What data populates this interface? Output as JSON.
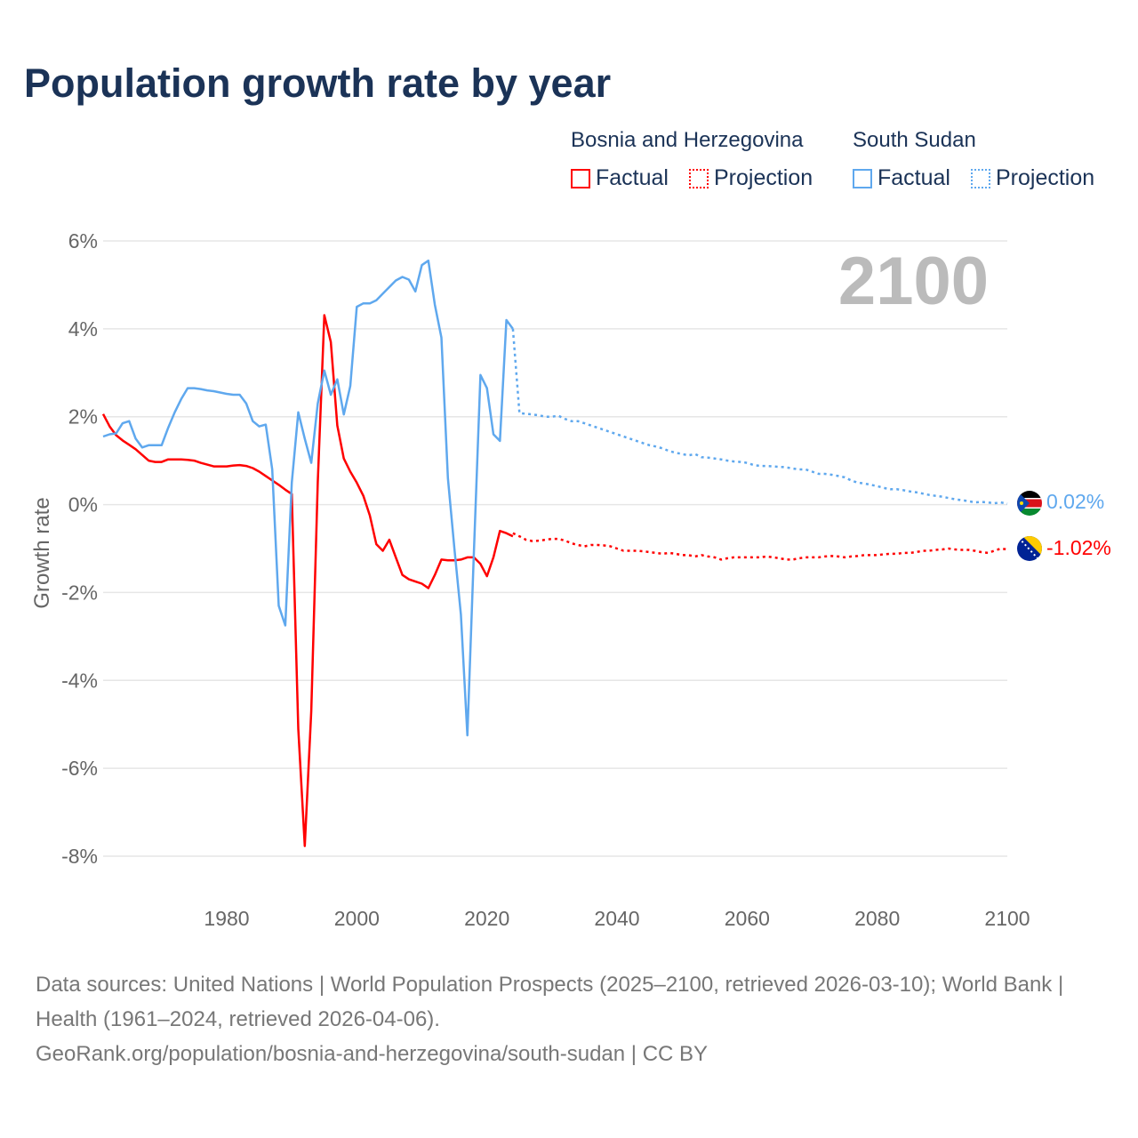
{
  "title": "Population growth rate by year",
  "legend": {
    "groups": [
      {
        "name": "Bosnia and Herzegovina",
        "factual": "Factual",
        "projection": "Projection",
        "color": "#ff0000"
      },
      {
        "name": "South Sudan",
        "factual": "Factual",
        "projection": "Projection",
        "color": "#5fa8ee"
      }
    ]
  },
  "year_label": "2100",
  "end_labels": {
    "south_sudan": "0.02%",
    "bosnia": "-1.02%"
  },
  "source": {
    "line1": "Data sources: United Nations | World Population Prospects (2025–2100, retrieved 2026-03-10); World Bank | Health (1961–2024, retrieved 2026-04-06).",
    "line2": "GeoRank.org/population/bosnia-and-herzegovina/south-sudan | CC BY"
  },
  "chart_data": {
    "type": "line",
    "title": "Population growth rate by year",
    "xlabel": "",
    "ylabel": "Growth rate",
    "xlim": [
      1961,
      2100
    ],
    "ylim": [
      -8,
      6
    ],
    "x_ticks": [
      1980,
      2000,
      2020,
      2040,
      2060,
      2080,
      2100
    ],
    "y_ticks": [
      6,
      4,
      2,
      0,
      -2,
      -4,
      -6,
      -8
    ],
    "y_tick_labels": [
      "6%",
      "4%",
      "2%",
      "0%",
      "-2%",
      "-4%",
      "-6%",
      "-8%"
    ],
    "grid": true,
    "legend_position": "top-right",
    "series": [
      {
        "name": "Bosnia and Herzegovina",
        "kind": "Factual",
        "color": "#ff0000",
        "start_year": 1961,
        "values": [
          2.06,
          1.78,
          1.58,
          1.46,
          1.36,
          1.26,
          1.13,
          1.0,
          0.97,
          0.97,
          1.03,
          1.03,
          1.03,
          1.02,
          1.0,
          0.95,
          0.91,
          0.87,
          0.87,
          0.87,
          0.89,
          0.9,
          0.88,
          0.83,
          0.75,
          0.65,
          0.55,
          0.45,
          0.34,
          0.24,
          -5.1,
          -7.77,
          -4.7,
          0.5,
          4.31,
          3.7,
          1.8,
          1.05,
          0.75,
          0.5,
          0.2,
          -0.25,
          -0.9,
          -1.05,
          -0.8,
          -1.2,
          -1.6,
          -1.7,
          -1.75,
          -1.8,
          -1.9,
          -1.6,
          -1.25,
          -1.27,
          -1.27,
          -1.25,
          -1.2,
          -1.2,
          -1.35,
          -1.63,
          -1.2,
          -0.6,
          -0.65,
          -0.72
        ]
      },
      {
        "name": "Bosnia and Herzegovina",
        "kind": "Projection",
        "color": "#ff0000",
        "start_year": 2024,
        "values": [
          -0.65,
          -0.72,
          -0.8,
          -0.83,
          -0.82,
          -0.8,
          -0.78,
          -0.78,
          -0.82,
          -0.88,
          -0.92,
          -0.95,
          -0.92,
          -0.92,
          -0.93,
          -0.95,
          -1.0,
          -1.05,
          -1.05,
          -1.05,
          -1.06,
          -1.08,
          -1.1,
          -1.12,
          -1.1,
          -1.12,
          -1.15,
          -1.15,
          -1.18,
          -1.15,
          -1.18,
          -1.2,
          -1.25,
          -1.22,
          -1.2,
          -1.2,
          -1.2,
          -1.2,
          -1.2,
          -1.18,
          -1.2,
          -1.22,
          -1.25,
          -1.25,
          -1.22,
          -1.2,
          -1.2,
          -1.2,
          -1.18,
          -1.17,
          -1.18,
          -1.2,
          -1.18,
          -1.17,
          -1.15,
          -1.15,
          -1.15,
          -1.13,
          -1.12,
          -1.12,
          -1.1,
          -1.1,
          -1.08,
          -1.05,
          -1.05,
          -1.03,
          -1.02,
          -1.0,
          -1.02,
          -1.03,
          -1.03,
          -1.05,
          -1.08,
          -1.1,
          -1.05,
          -1.0,
          -1.02
        ]
      },
      {
        "name": "South Sudan",
        "kind": "Factual",
        "color": "#5fa8ee",
        "start_year": 1961,
        "values": [
          1.55,
          1.6,
          1.62,
          1.85,
          1.9,
          1.5,
          1.3,
          1.35,
          1.35,
          1.35,
          1.75,
          2.1,
          2.4,
          2.65,
          2.65,
          2.63,
          2.6,
          2.58,
          2.55,
          2.52,
          2.5,
          2.5,
          2.3,
          1.9,
          1.78,
          1.82,
          0.8,
          -2.3,
          -2.75,
          0.5,
          2.1,
          1.5,
          0.95,
          2.3,
          3.05,
          2.5,
          2.85,
          2.05,
          2.7,
          4.5,
          4.58,
          4.58,
          4.65,
          4.8,
          4.95,
          5.1,
          5.18,
          5.12,
          4.85,
          5.45,
          5.55,
          4.55,
          3.8,
          0.6,
          -1.0,
          -2.5,
          -5.25,
          -1.1,
          2.95,
          2.65,
          1.6,
          1.45,
          4.2,
          4.0
        ]
      },
      {
        "name": "South Sudan",
        "kind": "Projection",
        "color": "#5fa8ee",
        "start_year": 2024,
        "values": [
          4.0,
          2.08,
          2.07,
          2.05,
          2.03,
          2.0,
          2.0,
          2.02,
          1.95,
          1.9,
          1.9,
          1.85,
          1.8,
          1.75,
          1.7,
          1.65,
          1.6,
          1.55,
          1.5,
          1.45,
          1.4,
          1.35,
          1.32,
          1.28,
          1.22,
          1.18,
          1.15,
          1.12,
          1.15,
          1.08,
          1.07,
          1.05,
          1.03,
          1.0,
          0.98,
          0.97,
          0.95,
          0.9,
          0.88,
          0.88,
          0.87,
          0.86,
          0.85,
          0.82,
          0.8,
          0.8,
          0.75,
          0.7,
          0.7,
          0.68,
          0.65,
          0.62,
          0.55,
          0.5,
          0.48,
          0.45,
          0.42,
          0.38,
          0.35,
          0.35,
          0.33,
          0.3,
          0.28,
          0.25,
          0.22,
          0.2,
          0.18,
          0.15,
          0.12,
          0.1,
          0.08,
          0.05,
          0.06,
          0.05,
          0.03,
          0.05,
          0.02
        ]
      }
    ]
  }
}
